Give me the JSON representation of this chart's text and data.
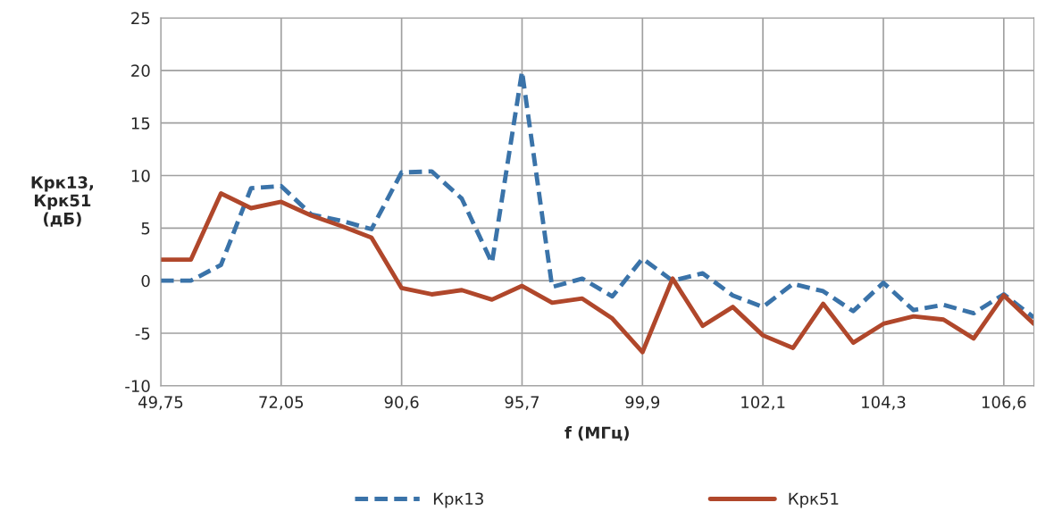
{
  "chart_data": {
    "type": "line",
    "xlabel": "f (МГц)",
    "ylabel": "Крк13,\nКрк51\n(дБ)",
    "categories": [
      "49,75",
      null,
      null,
      null,
      "72,05",
      null,
      null,
      null,
      "90,6",
      null,
      null,
      null,
      "95,7",
      null,
      null,
      null,
      "99,9",
      null,
      null,
      null,
      "102,1",
      null,
      null,
      null,
      "104,3",
      null,
      null,
      null,
      "106,6",
      null
    ],
    "series": [
      {
        "name": "Крк13",
        "color": "#3a73a9",
        "line_style": "dashed",
        "values": [
          0,
          0,
          1.5,
          8.8,
          9.0,
          6.3,
          5.7,
          4.9,
          10.3,
          10.4,
          7.8,
          1.7,
          19.9,
          -0.6,
          0.2,
          -1.5,
          2.1,
          0,
          0.7,
          -1.4,
          -2.5,
          -0.3,
          -1.0,
          -2.9,
          -0.2,
          -2.8,
          -2.3,
          -3.1,
          -1.3,
          -3.5
        ]
      },
      {
        "name": "Крк51",
        "color": "#b0472b",
        "line_style": "solid",
        "values": [
          2.0,
          2.0,
          8.3,
          6.9,
          7.5,
          6.2,
          5.2,
          4.1,
          -0.7,
          -1.3,
          -0.9,
          -1.8,
          -0.5,
          -2.1,
          -1.7,
          -3.6,
          -6.8,
          0.2,
          -4.3,
          -2.5,
          -5.2,
          -6.4,
          -2.2,
          -5.9,
          -4.1,
          -3.4,
          -3.7,
          -5.5,
          -1.4,
          -4.1
        ]
      }
    ],
    "ylim": [
      -10,
      25
    ],
    "yticks": [
      -10,
      -5,
      0,
      5,
      10,
      15,
      20,
      25
    ],
    "grid": true,
    "legend": "bottom"
  }
}
